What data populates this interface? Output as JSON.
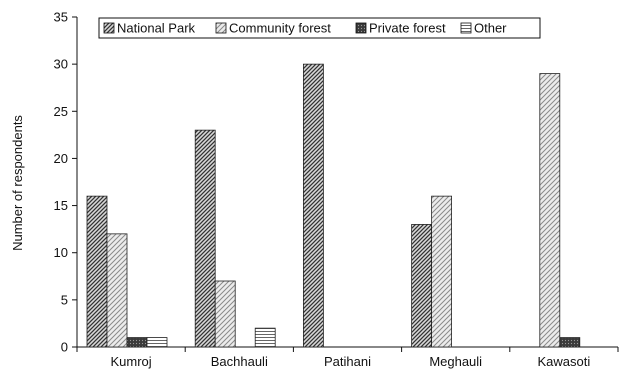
{
  "chart_data": {
    "type": "bar",
    "title": "",
    "xlabel": "",
    "ylabel": "Number of respondents",
    "ylim": [
      0,
      35
    ],
    "yticks": [
      0,
      5,
      10,
      15,
      20,
      25,
      30,
      35
    ],
    "grid": false,
    "legend_position": "top",
    "categories": [
      "Kumroj",
      "Bachhauli",
      "Patihani",
      "Meghauli",
      "Kawasoti"
    ],
    "series": [
      {
        "name": "National Park",
        "pattern": "diagonal-dense-dark",
        "values": [
          16,
          23,
          30,
          13,
          0
        ]
      },
      {
        "name": "Community forest",
        "pattern": "diagonal-light",
        "values": [
          12,
          7,
          0,
          16,
          29
        ]
      },
      {
        "name": "Private forest",
        "pattern": "dotted-dark",
        "values": [
          1,
          0,
          0,
          0,
          1
        ]
      },
      {
        "name": "Other",
        "pattern": "horizontal-lines",
        "values": [
          1,
          2,
          0,
          0,
          0
        ]
      }
    ]
  }
}
